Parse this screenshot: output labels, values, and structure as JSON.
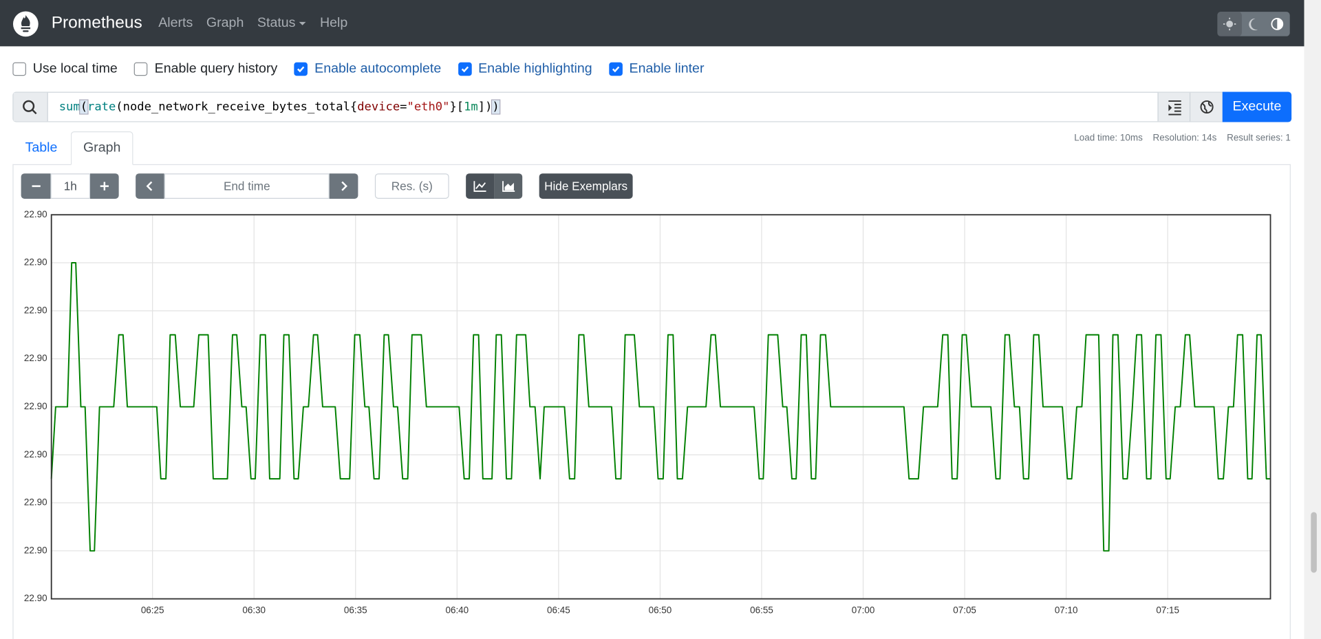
{
  "navbar": {
    "brand": "Prometheus",
    "links": [
      "Alerts",
      "Graph",
      "Status",
      "Help"
    ]
  },
  "options": [
    {
      "label": "Use local time",
      "checked": false
    },
    {
      "label": "Enable query history",
      "checked": false
    },
    {
      "label": "Enable autocomplete",
      "checked": true
    },
    {
      "label": "Enable highlighting",
      "checked": true
    },
    {
      "label": "Enable linter",
      "checked": true
    }
  ],
  "query": {
    "tokens": [
      "sum",
      "(",
      "rate",
      "(",
      "node_network_receive_bytes_total",
      "{",
      "device",
      "=",
      "\"eth0\"",
      "}",
      "[",
      "1m",
      "]",
      ")",
      ")"
    ],
    "execute": "Execute"
  },
  "tabs": {
    "items": [
      "Table",
      "Graph"
    ],
    "active": 1
  },
  "stats": [
    "Load time: 10ms",
    "Resolution: 14s",
    "Result series: 1"
  ],
  "controls": {
    "range": "1h",
    "end_time": "End time",
    "resolution": "Res. (s)",
    "exemplars": "Hide Exemplars"
  },
  "chart_data": {
    "type": "line",
    "x": [
      380.02,
      380.23,
      380.81,
      381.02,
      381.22,
      381.47,
      381.68,
      381.93,
      382.14,
      382.39,
      383.09,
      383.34,
      383.55,
      383.76,
      385.21,
      385.41,
      385.66,
      385.87,
      386.12,
      386.37,
      387.03,
      387.28,
      387.74,
      387.99,
      388.69,
      388.94,
      389.15,
      389.4,
      389.61,
      389.85,
      390.06,
      390.31,
      390.56,
      390.77,
      391.27,
      391.47,
      391.72,
      391.97,
      392.18,
      392.43,
      392.68,
      392.93,
      393.13,
      393.38,
      394.0,
      394.25,
      394.71,
      394.96,
      395.21,
      395.46,
      395.66,
      395.91,
      396.16,
      396.41,
      396.62,
      396.87,
      397.07,
      397.32,
      397.57,
      397.78,
      398.24,
      398.49,
      400.1,
      400.35,
      400.6,
      400.81,
      401.06,
      401.27,
      401.72,
      401.93,
      402.18,
      402.43,
      402.68,
      402.93,
      403.38,
      403.59,
      403.84,
      404.09,
      404.29,
      405.29,
      405.54,
      405.79,
      406.0,
      406.24,
      406.49,
      407.61,
      407.82,
      408.07,
      408.28,
      408.73,
      408.98,
      409.69,
      409.9,
      410.15,
      410.39,
      410.64,
      410.85,
      411.1,
      411.35,
      412.26,
      412.51,
      412.72,
      412.97,
      414.63,
      414.88,
      415.08,
      415.33,
      415.79,
      416.04,
      416.24,
      416.49,
      416.7,
      416.95,
      417.2,
      417.45,
      417.66,
      417.9,
      418.15,
      418.4,
      422.01,
      422.26,
      422.72,
      422.97,
      423.67,
      423.92,
      424.17,
      424.38,
      424.63,
      424.88,
      425.08,
      425.33,
      426.29,
      426.54,
      426.74,
      426.99,
      427.2,
      427.45,
      427.7,
      427.9,
      428.15,
      428.4,
      428.65,
      428.86,
      429.81,
      430.06,
      430.27,
      430.52,
      430.77,
      430.98,
      431.6,
      431.85,
      432.1,
      432.3,
      432.55,
      432.8,
      433.01,
      433.26,
      433.47,
      433.71,
      433.96,
      434.17,
      434.42,
      434.67,
      434.92,
      435.12,
      435.37,
      435.62,
      435.87,
      436.08,
      436.33,
      437.28,
      437.49,
      437.74,
      437.99,
      438.24,
      438.44,
      438.69,
      438.94,
      439.15,
      439.4,
      439.6,
      439.86,
      440.06
    ],
    "series": [
      {
        "color": "#008000",
        "values": [
          22.8985,
          22.9,
          22.9,
          22.903,
          22.903,
          22.9,
          22.9,
          22.897,
          22.897,
          22.9,
          22.9,
          22.9015,
          22.9015,
          22.9,
          22.9,
          22.8985,
          22.8985,
          22.9015,
          22.9015,
          22.9,
          22.9,
          22.9015,
          22.9015,
          22.8985,
          22.8985,
          22.9015,
          22.9015,
          22.9,
          22.9,
          22.8985,
          22.8985,
          22.9015,
          22.9015,
          22.8985,
          22.8985,
          22.9015,
          22.9015,
          22.8985,
          22.8985,
          22.9,
          22.9,
          22.9015,
          22.9015,
          22.9,
          22.9,
          22.8985,
          22.8985,
          22.9015,
          22.9015,
          22.9,
          22.9,
          22.8985,
          22.8985,
          22.9015,
          22.9015,
          22.9,
          22.9,
          22.8985,
          22.8985,
          22.9015,
          22.9015,
          22.9,
          22.9,
          22.8985,
          22.8985,
          22.9015,
          22.9015,
          22.8985,
          22.8985,
          22.9015,
          22.9015,
          22.8985,
          22.8985,
          22.9015,
          22.9015,
          22.9,
          22.9,
          22.8985,
          22.9,
          22.9,
          22.8985,
          22.8985,
          22.9015,
          22.9015,
          22.9,
          22.9,
          22.8985,
          22.8985,
          22.9015,
          22.9015,
          22.9,
          22.9,
          22.8985,
          22.8985,
          22.9015,
          22.9015,
          22.8985,
          22.8985,
          22.9,
          22.9,
          22.9015,
          22.9015,
          22.9,
          22.9,
          22.8985,
          22.8985,
          22.9015,
          22.9015,
          22.9,
          22.9,
          22.8985,
          22.8985,
          22.9015,
          22.9015,
          22.8985,
          22.8985,
          22.9015,
          22.9015,
          22.9,
          22.9,
          22.8985,
          22.8985,
          22.9,
          22.9,
          22.9015,
          22.9015,
          22.8985,
          22.8985,
          22.9015,
          22.9015,
          22.9,
          22.9,
          22.8985,
          22.8985,
          22.9015,
          22.9015,
          22.9,
          22.9,
          22.8985,
          22.8985,
          22.9015,
          22.9015,
          22.9,
          22.9,
          22.8985,
          22.8985,
          22.9,
          22.9,
          22.9015,
          22.9015,
          22.897,
          22.897,
          22.9015,
          22.9015,
          22.8985,
          22.8985,
          22.9,
          22.9015,
          22.9015,
          22.8985,
          22.8985,
          22.9015,
          22.9015,
          22.8985,
          22.8985,
          22.9,
          22.9,
          22.9015,
          22.9015,
          22.9,
          22.9,
          22.8985,
          22.8985,
          22.9,
          22.9,
          22.9015,
          22.9015,
          22.8985,
          22.8985,
          22.9015,
          22.9015,
          22.8985,
          22.8985
        ]
      }
    ],
    "xlim": [
      380.02,
      440.06
    ],
    "xticks": [
      {
        "value": 385,
        "label": "06:25"
      },
      {
        "value": 390,
        "label": "06:30"
      },
      {
        "value": 395,
        "label": "06:35"
      },
      {
        "value": 400,
        "label": "06:40"
      },
      {
        "value": 405,
        "label": "06:45"
      },
      {
        "value": 410,
        "label": "06:50"
      },
      {
        "value": 415,
        "label": "06:55"
      },
      {
        "value": 420,
        "label": "07:00"
      },
      {
        "value": 425,
        "label": "07:05"
      },
      {
        "value": 430,
        "label": "07:10"
      },
      {
        "value": 435,
        "label": "07:15"
      }
    ],
    "ylim": [
      22.896,
      22.904
    ],
    "yticks": [
      {
        "value": 22.896,
        "label": "22.90"
      },
      {
        "value": 22.897,
        "label": "22.90"
      },
      {
        "value": 22.898,
        "label": "22.90"
      },
      {
        "value": 22.899,
        "label": "22.90"
      },
      {
        "value": 22.9,
        "label": "22.90"
      },
      {
        "value": 22.901,
        "label": "22.90"
      },
      {
        "value": 22.902,
        "label": "22.90"
      },
      {
        "value": 22.903,
        "label": "22.90"
      },
      {
        "value": 22.904,
        "label": "22.90"
      }
    ],
    "grid": true
  }
}
